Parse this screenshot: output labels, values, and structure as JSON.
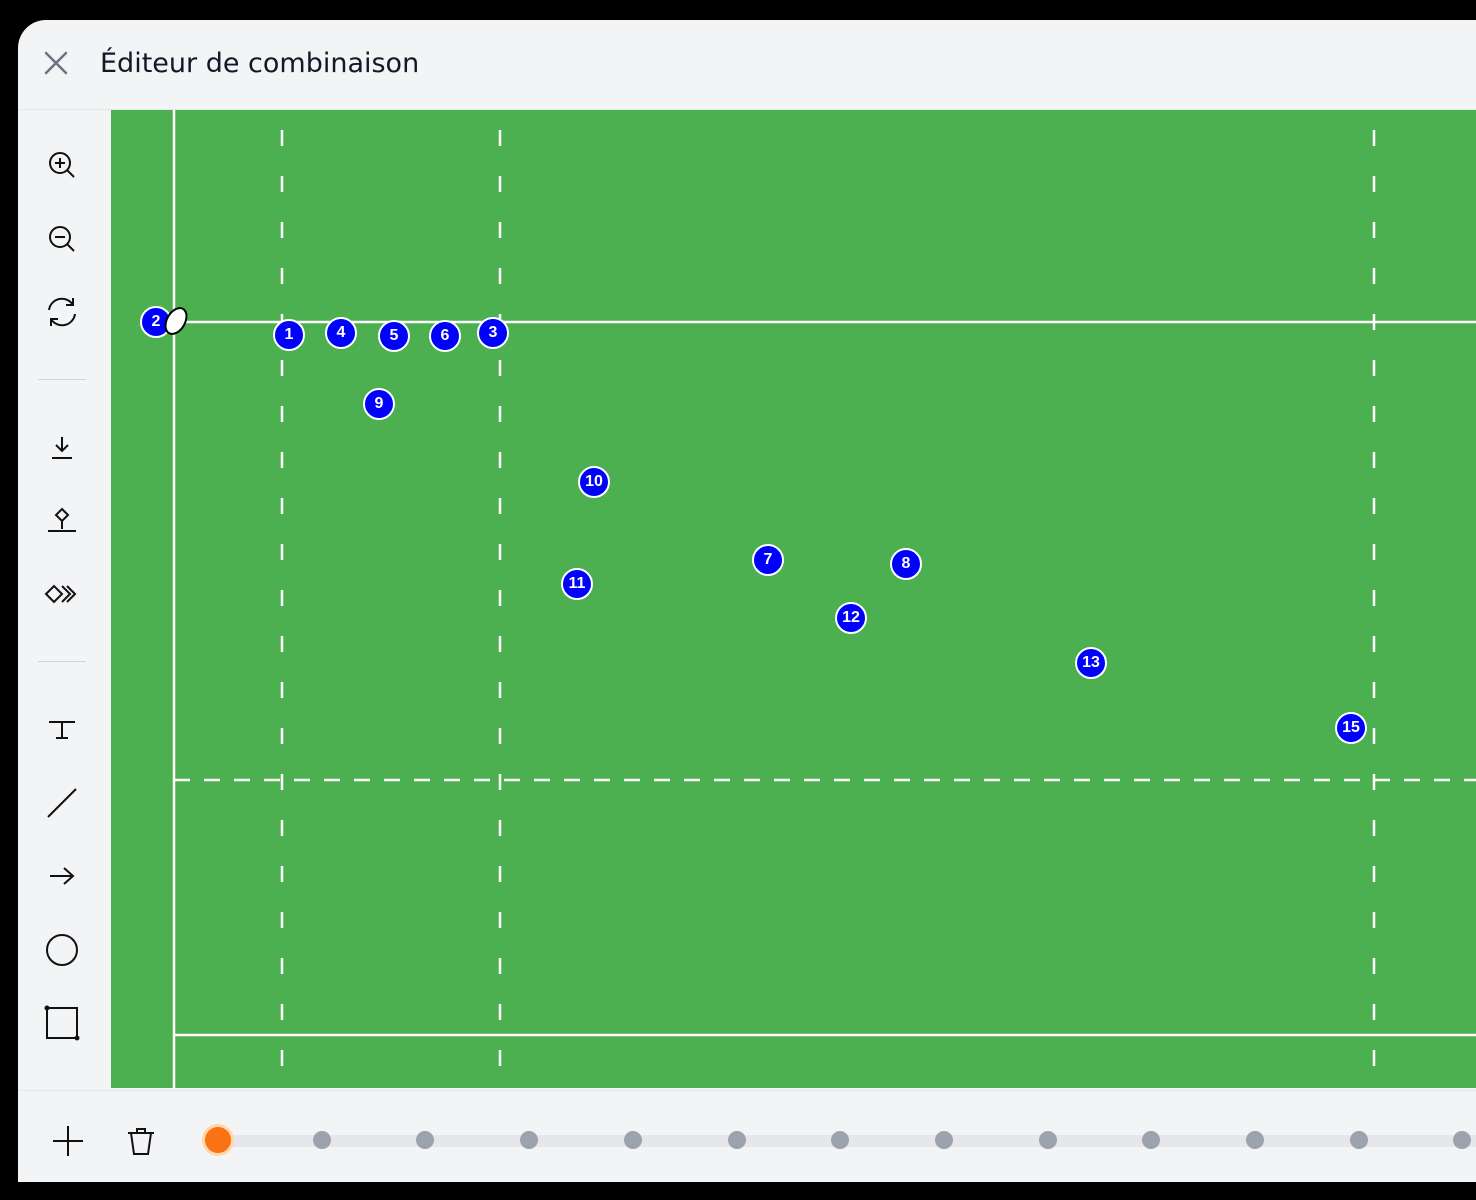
{
  "header": {
    "title": "Éditeur de combinaison",
    "close_icon": "close-icon"
  },
  "toolbar": {
    "tools": [
      "zoom-in-icon",
      "zoom-out-icon",
      "refresh-icon",
      "download-icon",
      "place-icon",
      "move-forward-icon",
      "text-tool-icon",
      "line-tool-icon",
      "arrow-tool-icon",
      "circle-tool-icon",
      "rectangle-tool-icon"
    ]
  },
  "field": {
    "colors": {
      "grass": "#4caf50",
      "lines": "#ffffff",
      "player": "#0000ff",
      "ball": "#ffffff"
    },
    "players": [
      "2",
      "1",
      "4",
      "5",
      "6",
      "3",
      "9",
      "10",
      "11",
      "7",
      "8",
      "12",
      "13",
      "15"
    ]
  },
  "timeline": {
    "add_icon": "plus-icon",
    "delete_icon": "trash-icon",
    "keyframe_count": 13,
    "active_keyframe": 1,
    "colors": {
      "active": "#f97316",
      "inactive": "#9ca3af"
    }
  }
}
